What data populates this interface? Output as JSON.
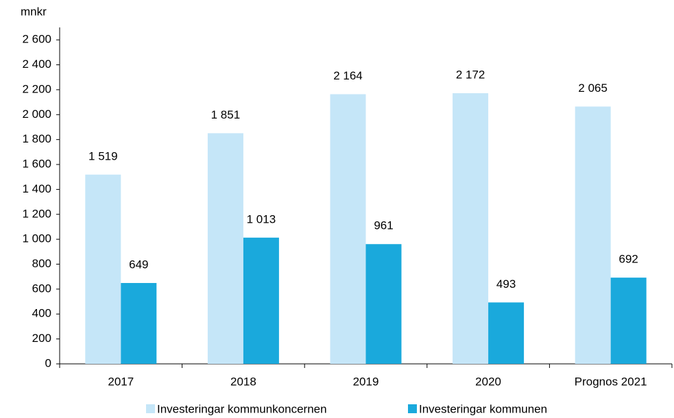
{
  "chart_data": {
    "type": "bar",
    "y_axis_label": "mnkr",
    "categories": [
      "2017",
      "2018",
      "2019",
      "2020",
      "Prognos 2021"
    ],
    "series": [
      {
        "name": "Investeringar kommunkoncernen",
        "color": "#c5e6f8",
        "values": [
          1519,
          1851,
          2164,
          2172,
          2065
        ],
        "value_labels": [
          "1 519",
          "1 851",
          "2 164",
          "2 172",
          "2 065"
        ]
      },
      {
        "name": "Investeringar kommunen",
        "color": "#1aa9dc",
        "values": [
          649,
          1013,
          961,
          493,
          692
        ],
        "value_labels": [
          "649",
          "1 013",
          "961",
          "493",
          "692"
        ]
      }
    ],
    "ylim": [
      0,
      2700
    ],
    "yticks": [
      0,
      200,
      400,
      600,
      800,
      {
        "value": 1000,
        "label": "1 000"
      },
      {
        "value": 1200,
        "label": "1 200"
      },
      {
        "value": 1400,
        "label": "1 400"
      },
      {
        "value": 1600,
        "label": "1 600"
      },
      {
        "value": 1800,
        "label": "1 800"
      },
      {
        "value": 2000,
        "label": "2 000"
      },
      {
        "value": 2200,
        "label": "2 200"
      },
      {
        "value": 2400,
        "label": "2 400"
      },
      {
        "value": 2600,
        "label": "2 600"
      }
    ],
    "legend": "bottom"
  }
}
